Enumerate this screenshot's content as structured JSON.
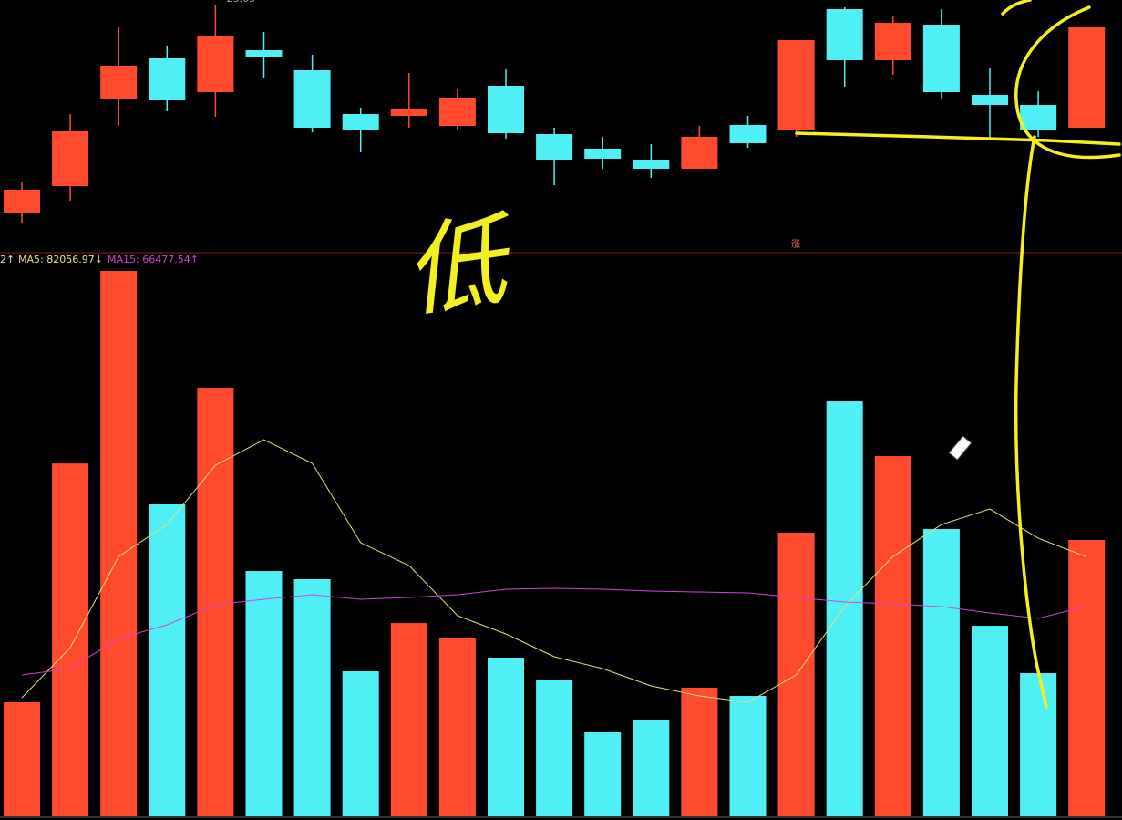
{
  "chart_data": [
    {
      "type": "candlestick",
      "ylim": [
        22.33,
        25.1
      ],
      "open": [
        22.77,
        23.06,
        24.01,
        24.46,
        24.09,
        24.55,
        24.33,
        23.85,
        23.83,
        23.72,
        24.16,
        23.63,
        23.47,
        23.35,
        23.25,
        23.73,
        23.67,
        25.0,
        24.44,
        24.83,
        24.06,
        23.95,
        23.7
      ],
      "close": [
        23.02,
        23.66,
        24.38,
        24.0,
        24.7,
        24.47,
        23.7,
        23.67,
        23.9,
        24.03,
        23.64,
        23.35,
        23.36,
        23.25,
        23.6,
        23.53,
        24.66,
        24.44,
        24.85,
        24.09,
        23.95,
        23.67,
        24.8
      ],
      "high": [
        23.1,
        23.85,
        24.8,
        24.6,
        25.05,
        24.75,
        24.5,
        23.92,
        24.3,
        24.12,
        24.34,
        23.7,
        23.6,
        23.52,
        23.72,
        23.83,
        24.66,
        25.02,
        24.92,
        25.0,
        24.35,
        24.1,
        24.8
      ],
      "low": [
        22.65,
        22.9,
        23.72,
        23.88,
        23.82,
        24.25,
        23.65,
        23.43,
        23.7,
        23.67,
        23.58,
        23.07,
        23.25,
        23.15,
        23.25,
        23.48,
        23.6,
        24.15,
        24.28,
        24.02,
        23.57,
        23.6,
        23.7
      ],
      "up_color": "#ff4a2e",
      "down_color": "#4ff0f5",
      "annotation": "涨",
      "handwriting": "低"
    },
    {
      "type": "bar",
      "ylim": [
        0,
        180000
      ],
      "indicator_label": "2↑",
      "values": [
        36050,
        111600,
        172500,
        98650,
        135560,
        77590,
        75000,
        45860,
        61150,
        56530,
        50190,
        42980,
        26540,
        30570,
        40670,
        38070,
        89700,
        131240,
        113930,
        90860,
        60280,
        45280,
        87400
      ],
      "colors": [
        "#ff4a2e",
        "#ff4a2e",
        "#ff4a2e",
        "#4ff0f5",
        "#ff4a2e",
        "#4ff0f5",
        "#4ff0f5",
        "#4ff0f5",
        "#ff4a2e",
        "#ff4a2e",
        "#4ff0f5",
        "#4ff0f5",
        "#4ff0f5",
        "#4ff0f5",
        "#ff4a2e",
        "#4ff0f5",
        "#ff4a2e",
        "#4ff0f5",
        "#ff4a2e",
        "#4ff0f5",
        "#4ff0f5",
        "#4ff0f5",
        "#ff4a2e"
      ],
      "series": [
        {
          "label": "MA5: 82056.97↓",
          "color": "#e6e27a",
          "values": [
            37500,
            53360,
            82200,
            92300,
            111050,
            119120,
            111620,
            86530,
            79320,
            63460,
            57690,
            50480,
            46730,
            41250,
            38080,
            36060,
            44710,
            66340,
            82200,
            92300,
            97200,
            87970,
            82056.97
          ]
        },
        {
          "label": "MA15: 66477.54↑",
          "color": "#d043d6",
          "values": [
            44710,
            46730,
            56240,
            60570,
            66920,
            68650,
            70090,
            68650,
            69220,
            70090,
            71820,
            72110,
            71820,
            71240,
            70950,
            70670,
            69220,
            67780,
            67200,
            66340,
            64320,
            62590,
            66477.54
          ]
        }
      ]
    }
  ]
}
